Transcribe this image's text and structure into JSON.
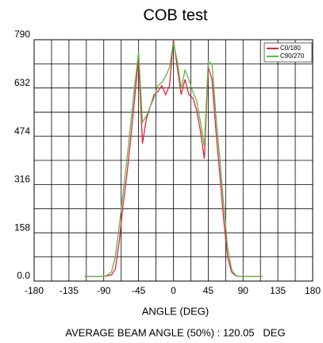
{
  "chart_data": {
    "type": "line",
    "title": "COB test",
    "xlabel": "ANGLE (DEG)",
    "annotation": "AVERAGE BEAM ANGLE (50%) : 120.05   DEG",
    "x": [
      -115,
      -110,
      -105,
      -100,
      -95,
      -90,
      -85,
      -80,
      -75,
      -70,
      -65,
      -60,
      -55,
      -50,
      -45,
      -40,
      -35,
      -30,
      -25,
      -20,
      -15,
      -10,
      -5,
      0,
      5,
      10,
      15,
      20,
      25,
      30,
      35,
      40,
      45,
      50,
      55,
      60,
      65,
      70,
      75,
      80,
      85,
      90,
      95,
      100,
      105,
      110,
      115
    ],
    "series": [
      {
        "name": "C0/180",
        "color": "#e8213a",
        "values": [
          15,
          15,
          15,
          15,
          15,
          15,
          18,
          20,
          40,
          130,
          250,
          350,
          470,
          600,
          730,
          450,
          530,
          570,
          610,
          620,
          640,
          610,
          640,
          790,
          700,
          610,
          660,
          610,
          600,
          560,
          490,
          400,
          700,
          660,
          490,
          350,
          200,
          80,
          30,
          18,
          15,
          15,
          15,
          15,
          15,
          15,
          15
        ]
      },
      {
        "name": "C90/270",
        "color": "#5cb84a",
        "values": [
          15,
          15,
          15,
          15,
          15,
          15,
          20,
          30,
          80,
          180,
          290,
          400,
          520,
          640,
          750,
          520,
          540,
          570,
          600,
          640,
          650,
          670,
          700,
          780,
          720,
          630,
          690,
          660,
          620,
          590,
          520,
          440,
          720,
          710,
          540,
          400,
          250,
          110,
          40,
          20,
          15,
          15,
          15,
          15,
          15,
          15,
          15
        ]
      }
    ],
    "xlim": [
      -180,
      180
    ],
    "xticks": [
      -180,
      -135,
      -90,
      -45,
      0,
      45,
      90,
      135,
      180
    ],
    "ylim": [
      0,
      790
    ],
    "yticks": [
      {
        "value": 0,
        "label": "0.0"
      },
      158,
      316,
      474,
      632,
      790
    ],
    "xgrid": [
      -157.5,
      -112.5,
      -67.5,
      -22.5,
      22.5,
      67.5,
      112.5,
      157.5
    ],
    "ygrid": [
      79,
      237,
      395,
      553,
      711
    ],
    "grid": true,
    "legend": "upper right"
  }
}
